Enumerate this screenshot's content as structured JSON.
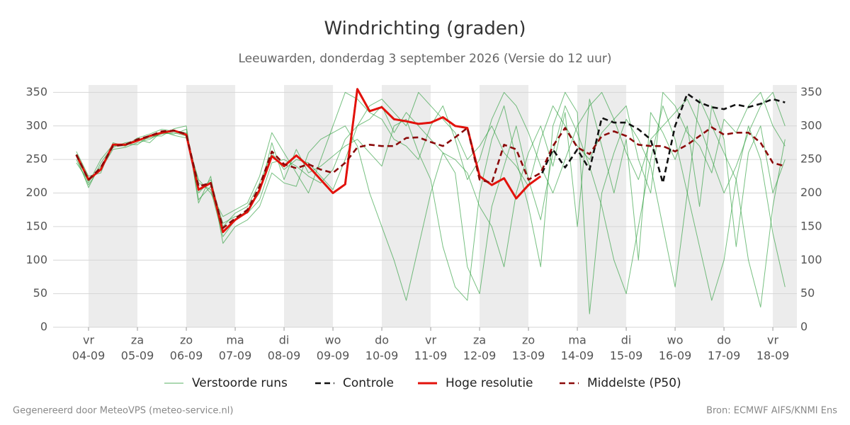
{
  "chart_data": {
    "type": "line",
    "title": "Windrichting (graden)",
    "subtitle": "Leeuwarden, donderdag  3 september 2026 (Versie do 12 uur)",
    "footer_left": "Gegenereerd door MeteoVPS (meteo-service.nl)",
    "footer_right": "Bron: ECMWF AIFS/KNMI Ens",
    "x": [
      18,
      24,
      30,
      36,
      42,
      48,
      54,
      60,
      66,
      72,
      78,
      84,
      90,
      96,
      102,
      108,
      114,
      120,
      126,
      132,
      138,
      144,
      150,
      156,
      162,
      168,
      174,
      180,
      186,
      192,
      198,
      204,
      210,
      216,
      222,
      228,
      234,
      240,
      246,
      252,
      258,
      264,
      270,
      276,
      282,
      288,
      294,
      300,
      306,
      312,
      318,
      324,
      330,
      336,
      342,
      348,
      354,
      360,
      366
    ],
    "xlim": [
      6.6,
      371.8
    ],
    "xticks": [
      {
        "value": 24,
        "label": "04-09"
      },
      {
        "value": 48,
        "label": "05-09"
      },
      {
        "value": 72,
        "label": "06-09"
      },
      {
        "value": 96,
        "label": "07-09"
      },
      {
        "value": 120,
        "label": "08-09"
      },
      {
        "value": 144,
        "label": "09-09"
      },
      {
        "value": 168,
        "label": "10-09"
      },
      {
        "value": 192,
        "label": "11-09"
      },
      {
        "value": 216,
        "label": "12-09"
      },
      {
        "value": 240,
        "label": "13-09"
      },
      {
        "value": 264,
        "label": "14-09"
      },
      {
        "value": 288,
        "label": "15-09"
      },
      {
        "value": 312,
        "label": "16-09"
      },
      {
        "value": 336,
        "label": "17-09"
      },
      {
        "value": 360,
        "label": "18-09"
      }
    ],
    "xtick_days": [
      "vr",
      "za",
      "zo",
      "ma",
      "di",
      "wo",
      "do",
      "vr",
      "za",
      "zo",
      "ma",
      "di",
      "wo",
      "do",
      "vr"
    ],
    "ylim": [
      0,
      361
    ],
    "yticks": [
      0,
      50,
      100,
      150,
      200,
      250,
      300,
      350
    ],
    "grid": true,
    "ensemble": {
      "name": "Verstoorde runs",
      "color": "#2e9e3e",
      "members": [
        [
          250,
          212,
          240,
          268,
          275,
          278,
          282,
          288,
          290,
          285,
          200,
          220,
          150,
          170,
          180,
          215,
          260,
          235,
          250,
          245,
          225,
          205,
          250,
          300,
          310,
          330,
          290,
          320,
          300,
          280,
          260,
          250,
          230,
          180,
          150,
          90,
          200,
          260,
          300,
          240,
          320,
          150,
          340,
          270,
          200,
          280,
          100,
          320,
          290,
          250,
          300,
          180,
          330,
          280,
          120,
          260,
          300,
          200,
          250
        ],
        [
          262,
          225,
          230,
          275,
          270,
          282,
          288,
          295,
          292,
          290,
          215,
          205,
          135,
          160,
          175,
          200,
          275,
          220,
          265,
          230,
          240,
          255,
          270,
          280,
          260,
          240,
          300,
          310,
          260,
          220,
          120,
          60,
          40,
          200,
          280,
          330,
          250,
          180,
          90,
          300,
          350,
          320,
          20,
          200,
          260,
          310,
          280,
          240,
          150,
          60,
          200,
          340,
          300,
          260,
          220,
          100,
          30,
          180,
          280
        ],
        [
          245,
          218,
          235,
          265,
          268,
          275,
          280,
          290,
          288,
          295,
          190,
          210,
          155,
          165,
          170,
          190,
          245,
          250,
          240,
          225,
          215,
          235,
          280,
          300,
          330,
          340,
          320,
          300,
          350,
          330,
          310,
          290,
          250,
          270,
          300,
          260,
          240,
          210,
          280,
          330,
          300,
          270,
          250,
          290,
          310,
          330,
          250,
          200,
          350,
          330,
          290,
          270,
          230,
          310,
          290,
          330,
          350,
          300,
          270
        ],
        [
          255,
          208,
          245,
          270,
          273,
          272,
          285,
          285,
          296,
          300,
          185,
          225,
          125,
          150,
          160,
          180,
          230,
          215,
          210,
          260,
          280,
          290,
          300,
          270,
          200,
          150,
          100,
          40,
          120,
          200,
          260,
          230,
          90,
          50,
          180,
          240,
          300,
          220,
          160,
          260,
          330,
          290,
          240,
          180,
          100,
          50,
          150,
          250,
          330,
          280,
          200,
          120,
          40,
          100,
          220,
          300,
          250,
          140,
          60
        ],
        [
          258,
          215,
          250,
          272,
          270,
          280,
          275,
          292,
          286,
          282,
          220,
          200,
          165,
          175,
          185,
          225,
          290,
          260,
          230,
          200,
          250,
          300,
          350,
          340,
          320,
          310,
          280,
          270,
          250,
          300,
          330,
          280,
          220,
          250,
          310,
          350,
          330,
          290,
          240,
          200,
          250,
          300,
          330,
          350,
          310,
          260,
          220,
          280,
          300,
          320,
          340,
          300,
          250,
          200,
          240,
          290,
          330,
          350,
          300
        ]
      ]
    },
    "series": [
      {
        "name": "Controle",
        "color": "#111111",
        "dashed": true,
        "values": [
          257,
          220,
          235,
          272,
          272,
          278,
          285,
          290,
          293,
          287,
          205,
          215,
          142,
          160,
          172,
          205,
          255,
          240,
          256,
          240,
          220,
          200,
          213,
          355,
          322,
          328,
          310,
          307,
          303,
          305,
          313,
          300,
          297,
          225,
          212,
          222,
          192,
          212,
          225,
          265,
          238,
          265,
          235,
          312,
          305,
          305,
          295,
          280,
          215,
          300,
          348,
          335,
          328,
          325,
          332,
          328,
          333,
          340,
          335
        ]
      },
      {
        "name": "Hoge resolutie",
        "color": "#e3120b",
        "dashed": false,
        "values": [
          257,
          220,
          235,
          272,
          272,
          278,
          285,
          290,
          293,
          287,
          205,
          215,
          142,
          160,
          172,
          205,
          255,
          240,
          256,
          240,
          220,
          200,
          213,
          355,
          322,
          328,
          310,
          307,
          303,
          305,
          313,
          300,
          297,
          225,
          212,
          222,
          192,
          212,
          225,
          null,
          null,
          null,
          null,
          null,
          null,
          null,
          null,
          null,
          null,
          null,
          null,
          null,
          null,
          null,
          null,
          null,
          null,
          null,
          null
        ]
      },
      {
        "name": "Middelste (P50)",
        "color": "#8b0a0a",
        "dashed": true,
        "values": [
          257,
          220,
          238,
          270,
          272,
          280,
          285,
          292,
          293,
          288,
          210,
          215,
          148,
          162,
          175,
          210,
          262,
          243,
          237,
          243,
          235,
          230,
          245,
          268,
          272,
          270,
          270,
          282,
          283,
          276,
          270,
          283,
          297,
          220,
          215,
          272,
          265,
          220,
          230,
          270,
          297,
          268,
          258,
          285,
          292,
          285,
          272,
          270,
          270,
          262,
          272,
          285,
          298,
          287,
          290,
          290,
          275,
          245,
          240
        ]
      }
    ]
  }
}
